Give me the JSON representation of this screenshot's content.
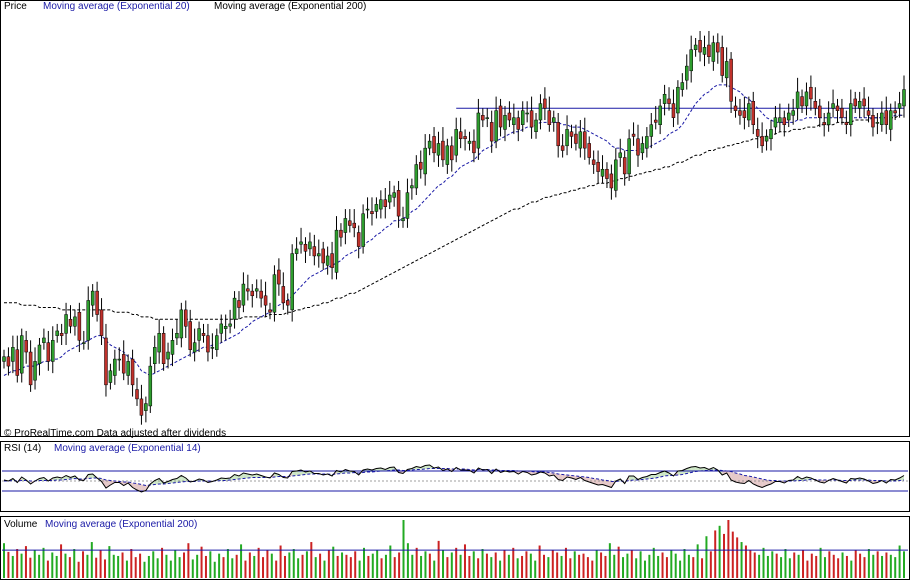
{
  "chart_data": [
    {
      "type": "candlestick",
      "panel": "price",
      "legend": [
        {
          "label": "Price",
          "color": "#000000"
        },
        {
          "label": "Moving average (Exponential 20)",
          "color": "#1a1aa6"
        },
        {
          "label": "Moving average (Exponential 200)",
          "color": "#000000"
        }
      ],
      "footnote": "© ProRealTime.com  Data adjusted after dividends",
      "ylim": [
        0,
        100
      ],
      "horizontal_line": 81,
      "candles_close": [
        22,
        18,
        26,
        14,
        31,
        24,
        10,
        20,
        27,
        30,
        20,
        29,
        33,
        31,
        40,
        35,
        39,
        29,
        28,
        46,
        50,
        40,
        31,
        10,
        16,
        21,
        21,
        15,
        20,
        10,
        4,
        -3,
        2,
        18,
        26,
        32,
        19,
        24,
        29,
        32,
        42,
        35,
        25,
        28,
        34,
        31,
        24,
        26,
        31,
        36,
        35,
        36,
        47,
        43,
        53,
        50,
        48,
        51,
        47,
        44,
        41,
        57,
        53,
        45,
        44,
        66,
        68,
        71,
        67,
        71,
        65,
        66,
        62,
        65,
        60,
        76,
        73,
        81,
        78,
        77,
        69,
        83,
        85,
        83,
        87,
        89,
        86,
        91,
        92,
        82,
        81,
        92,
        95,
        104,
        102,
        111,
        114,
        109,
        113,
        106,
        112,
        106,
        119,
        115,
        115,
        114,
        109,
        126,
        123,
        124,
        114,
        127,
        120,
        125,
        123,
        124,
        119,
        127,
        126,
        120,
        123,
        130,
        128,
        121,
        124,
        112,
        110,
        119,
        116,
        113,
        118,
        111,
        107,
        104,
        101,
        102,
        98,
        94,
        106,
        109,
        100,
        115,
        116,
        108,
        113,
        116,
        121,
        122,
        129,
        134,
        130,
        124,
        137,
        139,
        146,
        153,
        155,
        152,
        154,
        150,
        156,
        152,
        142,
        148,
        131,
        127,
        125,
        124,
        130,
        121,
        116,
        112,
        116,
        119,
        124,
        124,
        121,
        126,
        127,
        135,
        129,
        135,
        132,
        128,
        124,
        121,
        126,
        130,
        127,
        124,
        121,
        130,
        129,
        131,
        129,
        125,
        120,
        122,
        126,
        121,
        127,
        126,
        130,
        136
      ],
      "ema20_close": [
        14,
        15,
        16,
        16,
        17,
        18,
        18,
        18,
        19,
        20,
        20,
        21,
        21,
        22,
        24,
        25,
        26,
        27,
        28,
        29,
        30,
        31,
        31,
        29,
        27,
        26,
        25,
        24,
        22,
        21,
        19,
        16,
        15,
        14,
        15,
        16,
        17,
        18,
        19,
        20,
        21,
        22,
        23,
        24,
        25,
        26,
        26,
        27,
        27,
        28,
        29,
        30,
        31,
        32,
        34,
        35,
        37,
        38,
        39,
        40,
        41,
        43,
        44,
        45,
        46,
        48,
        50,
        52,
        54,
        56,
        57,
        58,
        59,
        60,
        61,
        62,
        63,
        65,
        66,
        67,
        68,
        69,
        71,
        72,
        74,
        75,
        77,
        78,
        80,
        80,
        81,
        82,
        84,
        85,
        87,
        89,
        91,
        93,
        95,
        96,
        98,
        99,
        101,
        103,
        104,
        105,
        106,
        108,
        110,
        111,
        112,
        114,
        115,
        116,
        117,
        118,
        118,
        119,
        120,
        120,
        121,
        122,
        122,
        122,
        122,
        122,
        121,
        121,
        120,
        120,
        120,
        119,
        118,
        117,
        116,
        115,
        114,
        112,
        111,
        111,
        110,
        110,
        110,
        110,
        111,
        111,
        112,
        113,
        114,
        115,
        117,
        118,
        119,
        121,
        124,
        127,
        130,
        132,
        134,
        135,
        137,
        138,
        138,
        138,
        137,
        136,
        135,
        133,
        132,
        130,
        128,
        126,
        124,
        123,
        122,
        122,
        122,
        122,
        122,
        123,
        123,
        124,
        124,
        124,
        124,
        124,
        124,
        124,
        124,
        124,
        124,
        124,
        124,
        124,
        124,
        124,
        124,
        124,
        124,
        124,
        124,
        125,
        125,
        125
      ],
      "ema200_close": [
        45,
        45,
        45,
        45,
        44,
        44,
        44,
        44,
        43,
        43,
        43,
        43,
        43,
        42,
        42,
        42,
        42,
        42,
        42,
        42,
        42,
        42,
        42,
        42,
        42,
        41,
        41,
        41,
        41,
        40,
        40,
        39,
        39,
        39,
        38,
        38,
        38,
        38,
        38,
        38,
        38,
        38,
        38,
        38,
        38,
        38,
        38,
        38,
        38,
        38,
        38,
        38,
        38,
        38,
        39,
        39,
        39,
        39,
        39,
        39,
        40,
        40,
        40,
        40,
        41,
        41,
        42,
        42,
        43,
        43,
        44,
        44,
        45,
        45,
        46,
        47,
        47,
        48,
        49,
        49,
        50,
        51,
        52,
        53,
        54,
        55,
        56,
        57,
        58,
        59,
        60,
        61,
        62,
        63,
        64,
        65,
        66,
        67,
        68,
        69,
        70,
        71,
        72,
        73,
        74,
        75,
        76,
        77,
        78,
        79,
        80,
        81,
        82,
        83,
        84,
        85,
        85,
        86,
        87,
        88,
        88,
        89,
        90,
        90,
        91,
        91,
        92,
        92,
        93,
        93,
        94,
        94,
        95,
        95,
        96,
        96,
        96,
        97,
        97,
        98,
        98,
        99,
        99,
        100,
        100,
        101,
        101,
        102,
        102,
        103,
        103,
        104,
        105,
        105,
        106,
        107,
        108,
        108,
        109,
        110,
        110,
        111,
        111,
        112,
        112,
        113,
        113,
        114,
        114,
        115,
        115,
        116,
        116,
        117,
        117,
        118,
        118,
        118,
        119,
        119,
        119,
        120,
        120,
        120,
        121,
        121,
        121,
        121,
        122,
        122,
        122,
        122,
        123,
        123,
        123,
        123,
        124,
        124,
        124,
        124,
        124,
        124,
        125,
        125
      ]
    },
    {
      "type": "line",
      "panel": "rsi",
      "legend": [
        {
          "label": "RSI (14)",
          "color": "#000000"
        },
        {
          "label": "Moving average (Exponential 14)",
          "color": "#1a1aa6"
        }
      ],
      "ylim": [
        0,
        100
      ],
      "bands": [
        30,
        70
      ],
      "rsi": [
        52,
        50,
        55,
        47,
        58,
        52,
        44,
        50,
        55,
        57,
        50,
        56,
        58,
        56,
        61,
        57,
        60,
        52,
        51,
        63,
        64,
        56,
        49,
        36,
        42,
        47,
        47,
        41,
        46,
        37,
        32,
        28,
        31,
        44,
        51,
        55,
        46,
        49,
        53,
        55,
        61,
        56,
        48,
        50,
        54,
        52,
        47,
        49,
        52,
        56,
        55,
        56,
        63,
        60,
        66,
        64,
        62,
        64,
        61,
        58,
        56,
        66,
        63,
        57,
        56,
        69,
        70,
        72,
        68,
        70,
        65,
        65,
        62,
        64,
        60,
        71,
        68,
        73,
        70,
        69,
        62,
        72,
        74,
        72,
        75,
        76,
        73,
        77,
        78,
        67,
        65,
        73,
        75,
        79,
        77,
        81,
        82,
        76,
        78,
        71,
        74,
        69,
        77,
        72,
        72,
        71,
        66,
        76,
        72,
        73,
        65,
        74,
        67,
        70,
        68,
        69,
        64,
        69,
        67,
        62,
        64,
        68,
        66,
        60,
        62,
        53,
        51,
        58,
        56,
        53,
        57,
        51,
        48,
        45,
        42,
        43,
        40,
        37,
        50,
        54,
        45,
        60,
        60,
        53,
        57,
        59,
        63,
        63,
        67,
        70,
        66,
        60,
        70,
        71,
        75,
        78,
        79,
        76,
        77,
        73,
        77,
        72,
        62,
        66,
        52,
        48,
        46,
        45,
        51,
        44,
        40,
        37,
        41,
        44,
        49,
        49,
        46,
        51,
        52,
        59,
        54,
        58,
        56,
        52,
        48,
        46,
        51,
        55,
        52,
        49,
        46,
        55,
        54,
        56,
        54,
        50,
        45,
        47,
        51,
        46,
        53,
        52,
        56,
        61
      ],
      "rsi_ema": [
        50,
        50,
        51,
        50,
        51,
        51,
        50,
        50,
        51,
        51,
        51,
        51,
        52,
        52,
        53,
        54,
        55,
        54,
        54,
        55,
        56,
        56,
        55,
        52,
        51,
        50,
        49,
        48,
        48,
        46,
        45,
        43,
        41,
        42,
        43,
        44,
        44,
        45,
        46,
        47,
        48,
        49,
        49,
        49,
        50,
        50,
        50,
        50,
        50,
        51,
        51,
        52,
        53,
        54,
        55,
        56,
        57,
        57,
        57,
        57,
        57,
        58,
        59,
        59,
        59,
        60,
        61,
        62,
        63,
        64,
        64,
        64,
        64,
        64,
        63,
        64,
        65,
        66,
        66,
        67,
        66,
        67,
        68,
        68,
        69,
        70,
        70,
        71,
        72,
        72,
        71,
        71,
        72,
        73,
        73,
        74,
        75,
        75,
        75,
        75,
        75,
        74,
        74,
        74,
        74,
        73,
        72,
        73,
        73,
        73,
        72,
        72,
        71,
        71,
        71,
        71,
        70,
        70,
        70,
        69,
        68,
        68,
        68,
        67,
        66,
        64,
        63,
        62,
        61,
        60,
        59,
        58,
        57,
        55,
        54,
        52,
        51,
        49,
        49,
        50,
        49,
        51,
        52,
        52,
        53,
        54,
        55,
        56,
        58,
        60,
        61,
        61,
        62,
        63,
        65,
        67,
        69,
        70,
        71,
        71,
        72,
        72,
        71,
        70,
        69,
        66,
        64,
        61,
        60,
        58,
        56,
        54,
        52,
        51,
        51,
        50,
        50,
        50,
        50,
        51,
        51,
        52,
        53,
        53,
        52,
        52,
        52,
        52,
        52,
        51,
        51,
        51,
        52,
        52,
        52,
        52,
        51,
        51,
        51,
        50,
        50,
        50,
        51,
        52
      ]
    },
    {
      "type": "bar",
      "panel": "volume",
      "legend": [
        {
          "label": "Volume",
          "color": "#000000"
        },
        {
          "label": "Moving average (Exponential 200)",
          "color": "#1a1aa6"
        }
      ],
      "ylim": [
        0,
        100
      ],
      "ma_level": 48,
      "volume": [
        60,
        45,
        38,
        50,
        42,
        55,
        35,
        48,
        40,
        52,
        30,
        44,
        38,
        58,
        42,
        36,
        50,
        28,
        46,
        40,
        62,
        35,
        48,
        32,
        55,
        40,
        38,
        44,
        30,
        50,
        36,
        42,
        28,
        38,
        46,
        34,
        52,
        40,
        30,
        48,
        36,
        44,
        60,
        32,
        40,
        54,
        38,
        46,
        28,
        42,
        36,
        50,
        34,
        40,
        58,
        30,
        44,
        38,
        52,
        36,
        48,
        42,
        30,
        56,
        38,
        44,
        50,
        34,
        40,
        46,
        62,
        36,
        42,
        30,
        48,
        54,
        38,
        44,
        40,
        36,
        46,
        30,
        52,
        38,
        42,
        48,
        34,
        40,
        56,
        36,
        44,
        100,
        60,
        40,
        52,
        38,
        46,
        42,
        30,
        64,
        48,
        36,
        44,
        52,
        40,
        58,
        38,
        46,
        34,
        50,
        42,
        36,
        44,
        30,
        48,
        40,
        52,
        34,
        38,
        46,
        42,
        30,
        56,
        40,
        36,
        48,
        44,
        38,
        52,
        34,
        46,
        40,
        42,
        36,
        30,
        48,
        44,
        38,
        60,
        40,
        54,
        36,
        42,
        48,
        34,
        46,
        30,
        40,
        52,
        38,
        44,
        36,
        48,
        42,
        30,
        50,
        40,
        36,
        58,
        34,
        72,
        46,
        82,
        90,
        76,
        100,
        80,
        70,
        62,
        56,
        48,
        44,
        40,
        52,
        38,
        46,
        42,
        36,
        50,
        34,
        44,
        40,
        48,
        30,
        42,
        38,
        52,
        36,
        46,
        40,
        34,
        44,
        38,
        30,
        48,
        42,
        36,
        50,
        40,
        46,
        38,
        44,
        40,
        36,
        56,
        46
      ]
    }
  ]
}
